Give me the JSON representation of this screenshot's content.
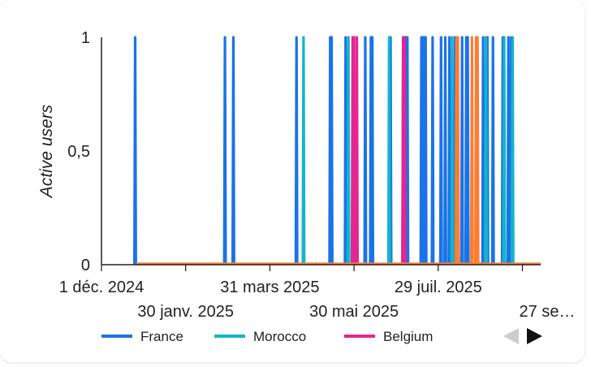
{
  "chart_data": {
    "type": "line",
    "ylabel": "Active users",
    "ylim": [
      0,
      1
    ],
    "y_ticks": [
      {
        "value": 0,
        "label": "0"
      },
      {
        "value": 0.5,
        "label": "0,5"
      },
      {
        "value": 1,
        "label": "1"
      }
    ],
    "x_range": [
      "2024-12-01",
      "2025-10-10"
    ],
    "x_ticks": [
      {
        "date": "2024-12-01",
        "label": "1 déc. 2024",
        "row": 0
      },
      {
        "date": "2025-01-30",
        "label": "30 janv. 2025",
        "row": 1
      },
      {
        "date": "2025-03-31",
        "label": "31 mars 2025",
        "row": 0
      },
      {
        "date": "2025-05-30",
        "label": "30 mai 2025",
        "row": 1
      },
      {
        "date": "2025-07-29",
        "label": "29 juil. 2025",
        "row": 0
      },
      {
        "date": "2025-09-27",
        "label": "27 se…",
        "row": 1
      }
    ],
    "legend": {
      "position": "bottom",
      "entries": [
        {
          "name": "France",
          "color": "#1a73e8"
        },
        {
          "name": "Morocco",
          "color": "#12b5cb"
        },
        {
          "name": "Belgium",
          "color": "#e52592"
        }
      ]
    },
    "series": [
      {
        "name": "France",
        "color": "#1a73e8",
        "active_dates": [
          "2024-12-25",
          "2025-02-27",
          "2025-03-05",
          "2025-04-19",
          "2025-05-13",
          "2025-05-14",
          "2025-05-24",
          "2025-06-07",
          "2025-06-11",
          "2025-06-12",
          "2025-06-25",
          "2025-07-04",
          "2025-07-06",
          "2025-07-07",
          "2025-07-17",
          "2025-07-18",
          "2025-07-19",
          "2025-07-20",
          "2025-07-25",
          "2025-07-31",
          "2025-08-03",
          "2025-08-06",
          "2025-08-10",
          "2025-08-15",
          "2025-08-18",
          "2025-08-19",
          "2025-08-30",
          "2025-09-02",
          "2025-09-06",
          "2025-09-13",
          "2025-09-17",
          "2025-09-19"
        ]
      },
      {
        "name": "Morocco",
        "color": "#12b5cb",
        "active_dates": [
          "2025-04-24",
          "2025-05-26",
          "2025-06-24",
          "2025-08-08",
          "2025-09-01",
          "2025-09-14",
          "2025-09-20"
        ]
      },
      {
        "name": "Belgium",
        "color": "#e52592",
        "active_dates": [
          "2025-05-29",
          "2025-05-30",
          "2025-06-01",
          "2025-07-04",
          "2025-07-05"
        ]
      },
      {
        "color": "#ff7c30",
        "active_dates": [
          "2025-08-11",
          "2025-08-12",
          "2025-08-22",
          "2025-08-25",
          "2025-08-26"
        ]
      }
    ]
  }
}
